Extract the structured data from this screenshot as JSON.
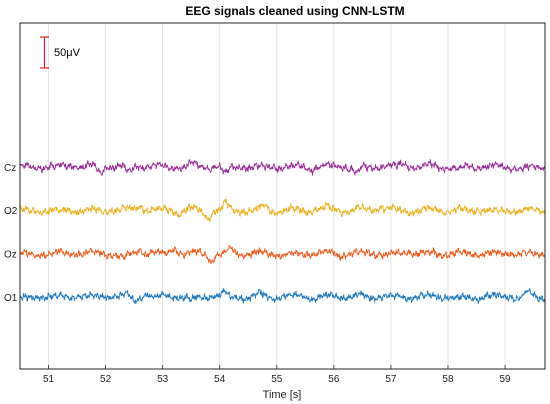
{
  "chart_data": {
    "type": "line",
    "title": "EEG signals cleaned using CNN-LSTM",
    "xlabel": "Time [s]",
    "ylabel": "",
    "xlim": [
      50.5,
      59.7
    ],
    "xticks": [
      51,
      52,
      53,
      54,
      55,
      56,
      57,
      58,
      59
    ],
    "grid": "vertical",
    "scale_bar": {
      "label": "50μV",
      "value_uV": 50,
      "color": "#e02020"
    },
    "series": [
      {
        "name": "Cz",
        "color": "#9b2d9b",
        "offset_uV": 210,
        "seed": 11,
        "events": [
          [
            51.9,
            -9
          ],
          [
            52.4,
            -12
          ],
          [
            53.5,
            6
          ],
          [
            54.1,
            -8
          ],
          [
            55.6,
            -6
          ],
          [
            56.4,
            -11
          ],
          [
            57.2,
            5
          ],
          [
            58.2,
            -5
          ],
          [
            59.3,
            -6
          ]
        ]
      },
      {
        "name": "O2",
        "color": "#edb120",
        "offset_uV": 140,
        "seed": 23,
        "events": [
          [
            52.6,
            8
          ],
          [
            53.3,
            -8
          ],
          [
            53.8,
            -13
          ],
          [
            54.1,
            10
          ],
          [
            54.8,
            5
          ],
          [
            55.9,
            4
          ],
          [
            56.8,
            6
          ]
        ]
      },
      {
        "name": "Oz",
        "color": "#f05a19",
        "offset_uV": 70,
        "seed": 37,
        "events": [
          [
            52.3,
            -7
          ],
          [
            52.6,
            6
          ],
          [
            53.2,
            8
          ],
          [
            53.85,
            -10
          ],
          [
            54.2,
            7
          ],
          [
            56.1,
            -5
          ],
          [
            57.3,
            5
          ]
        ]
      },
      {
        "name": "O1",
        "color": "#1f78bf",
        "offset_uV": 0,
        "seed": 49,
        "events": [
          [
            52.5,
            -8
          ],
          [
            52.7,
            7
          ],
          [
            53.5,
            -6
          ],
          [
            54.1,
            8
          ],
          [
            54.7,
            5
          ],
          [
            58.2,
            -5
          ],
          [
            59.4,
            5
          ]
        ]
      }
    ]
  }
}
